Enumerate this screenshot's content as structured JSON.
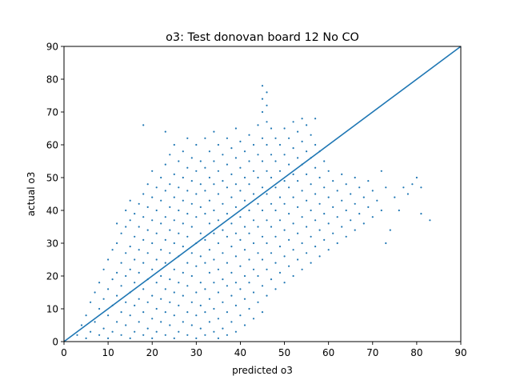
{
  "chart_data": {
    "type": "scatter",
    "title": "o3: Test donovan board 12 No CO",
    "xlabel": "predicted o3",
    "ylabel": "actual o3",
    "xlim": [
      0,
      90
    ],
    "ylim": [
      0,
      90
    ],
    "xticks": [
      0,
      10,
      20,
      30,
      40,
      50,
      60,
      70,
      80,
      90
    ],
    "yticks": [
      0,
      10,
      20,
      30,
      40,
      50,
      60,
      70,
      80,
      90
    ],
    "grid": false,
    "color": "#1f77b4",
    "reference_line": {
      "x": [
        0,
        90
      ],
      "y": [
        0,
        90
      ]
    },
    "points": [
      [
        3,
        2
      ],
      [
        4,
        5
      ],
      [
        5,
        1
      ],
      [
        5,
        8
      ],
      [
        6,
        3
      ],
      [
        6,
        12
      ],
      [
        7,
        6
      ],
      [
        7,
        15
      ],
      [
        8,
        2
      ],
      [
        8,
        10
      ],
      [
        8,
        18
      ],
      [
        9,
        4
      ],
      [
        9,
        13
      ],
      [
        9,
        22
      ],
      [
        10,
        1
      ],
      [
        10,
        8
      ],
      [
        10,
        16
      ],
      [
        10,
        25
      ],
      [
        11,
        3
      ],
      [
        11,
        11
      ],
      [
        11,
        19
      ],
      [
        11,
        28
      ],
      [
        12,
        6
      ],
      [
        12,
        14
      ],
      [
        12,
        21
      ],
      [
        12,
        30
      ],
      [
        12,
        36
      ],
      [
        13,
        2
      ],
      [
        13,
        9
      ],
      [
        13,
        17
      ],
      [
        13,
        24
      ],
      [
        13,
        33
      ],
      [
        14,
        5
      ],
      [
        14,
        12
      ],
      [
        14,
        20
      ],
      [
        14,
        27
      ],
      [
        14,
        35
      ],
      [
        14,
        40
      ],
      [
        15,
        1
      ],
      [
        15,
        8
      ],
      [
        15,
        15
      ],
      [
        15,
        22
      ],
      [
        15,
        29
      ],
      [
        15,
        37
      ],
      [
        15,
        43
      ],
      [
        16,
        3
      ],
      [
        16,
        11
      ],
      [
        16,
        18
      ],
      [
        16,
        25
      ],
      [
        16,
        32
      ],
      [
        16,
        39
      ],
      [
        17,
        6
      ],
      [
        17,
        13
      ],
      [
        17,
        21
      ],
      [
        17,
        28
      ],
      [
        17,
        35
      ],
      [
        17,
        42
      ],
      [
        18,
        2
      ],
      [
        18,
        9
      ],
      [
        18,
        16
      ],
      [
        18,
        24
      ],
      [
        18,
        31
      ],
      [
        18,
        38
      ],
      [
        18,
        45
      ],
      [
        18,
        66
      ],
      [
        19,
        4
      ],
      [
        19,
        12
      ],
      [
        19,
        19
      ],
      [
        19,
        27
      ],
      [
        19,
        34
      ],
      [
        19,
        41
      ],
      [
        19,
        48
      ],
      [
        20,
        1
      ],
      [
        20,
        7
      ],
      [
        20,
        14
      ],
      [
        20,
        22
      ],
      [
        20,
        30
      ],
      [
        20,
        37
      ],
      [
        20,
        44
      ],
      [
        20,
        52
      ],
      [
        21,
        3
      ],
      [
        21,
        10
      ],
      [
        21,
        18
      ],
      [
        21,
        25
      ],
      [
        21,
        33
      ],
      [
        21,
        40
      ],
      [
        21,
        47
      ],
      [
        22,
        6
      ],
      [
        22,
        13
      ],
      [
        22,
        20
      ],
      [
        22,
        28
      ],
      [
        22,
        36
      ],
      [
        22,
        43
      ],
      [
        22,
        50
      ],
      [
        23,
        2
      ],
      [
        23,
        9
      ],
      [
        23,
        16
      ],
      [
        23,
        24
      ],
      [
        23,
        31
      ],
      [
        23,
        38
      ],
      [
        23,
        46
      ],
      [
        23,
        54
      ],
      [
        23,
        64
      ],
      [
        24,
        5
      ],
      [
        24,
        12
      ],
      [
        24,
        19
      ],
      [
        24,
        27
      ],
      [
        24,
        34
      ],
      [
        24,
        41
      ],
      [
        24,
        48
      ],
      [
        24,
        57
      ],
      [
        25,
        1
      ],
      [
        25,
        8
      ],
      [
        25,
        15
      ],
      [
        25,
        22
      ],
      [
        25,
        30
      ],
      [
        25,
        37
      ],
      [
        25,
        44
      ],
      [
        25,
        51
      ],
      [
        25,
        60
      ],
      [
        26,
        3
      ],
      [
        26,
        11
      ],
      [
        26,
        18
      ],
      [
        26,
        26
      ],
      [
        26,
        33
      ],
      [
        26,
        40
      ],
      [
        26,
        47
      ],
      [
        26,
        55
      ],
      [
        27,
        6
      ],
      [
        27,
        14
      ],
      [
        27,
        21
      ],
      [
        27,
        29
      ],
      [
        27,
        36
      ],
      [
        27,
        43
      ],
      [
        27,
        50
      ],
      [
        27,
        58
      ],
      [
        28,
        2
      ],
      [
        28,
        9
      ],
      [
        28,
        17
      ],
      [
        28,
        24
      ],
      [
        28,
        32
      ],
      [
        28,
        39
      ],
      [
        28,
        46
      ],
      [
        28,
        53
      ],
      [
        28,
        62
      ],
      [
        29,
        5
      ],
      [
        29,
        12
      ],
      [
        29,
        20
      ],
      [
        29,
        27
      ],
      [
        29,
        35
      ],
      [
        29,
        42
      ],
      [
        29,
        49
      ],
      [
        29,
        56
      ],
      [
        30,
        1
      ],
      [
        30,
        8
      ],
      [
        30,
        15
      ],
      [
        30,
        23
      ],
      [
        30,
        30
      ],
      [
        30,
        38
      ],
      [
        30,
        45
      ],
      [
        30,
        52
      ],
      [
        30,
        60
      ],
      [
        31,
        4
      ],
      [
        31,
        11
      ],
      [
        31,
        18
      ],
      [
        31,
        26
      ],
      [
        31,
        33
      ],
      [
        31,
        41
      ],
      [
        31,
        48
      ],
      [
        31,
        55
      ],
      [
        32,
        2
      ],
      [
        32,
        9
      ],
      [
        32,
        16
      ],
      [
        32,
        24
      ],
      [
        32,
        31
      ],
      [
        32,
        39
      ],
      [
        32,
        46
      ],
      [
        32,
        53
      ],
      [
        32,
        62
      ],
      [
        33,
        6
      ],
      [
        33,
        13
      ],
      [
        33,
        21
      ],
      [
        33,
        28
      ],
      [
        33,
        36
      ],
      [
        33,
        43
      ],
      [
        33,
        50
      ],
      [
        33,
        58
      ],
      [
        34,
        3
      ],
      [
        34,
        10
      ],
      [
        34,
        18
      ],
      [
        34,
        25
      ],
      [
        34,
        33
      ],
      [
        34,
        40
      ],
      [
        34,
        48
      ],
      [
        34,
        55
      ],
      [
        34,
        64
      ],
      [
        35,
        1
      ],
      [
        35,
        7
      ],
      [
        35,
        15
      ],
      [
        35,
        22
      ],
      [
        35,
        30
      ],
      [
        35,
        37
      ],
      [
        35,
        45
      ],
      [
        35,
        52
      ],
      [
        35,
        60
      ],
      [
        36,
        4
      ],
      [
        36,
        12
      ],
      [
        36,
        19
      ],
      [
        36,
        27
      ],
      [
        36,
        34
      ],
      [
        36,
        42
      ],
      [
        36,
        49
      ],
      [
        36,
        57
      ],
      [
        37,
        2
      ],
      [
        37,
        9
      ],
      [
        37,
        17
      ],
      [
        37,
        24
      ],
      [
        37,
        32
      ],
      [
        37,
        39
      ],
      [
        37,
        47
      ],
      [
        37,
        54
      ],
      [
        37,
        62
      ],
      [
        38,
        6
      ],
      [
        38,
        14
      ],
      [
        38,
        21
      ],
      [
        38,
        29
      ],
      [
        38,
        36
      ],
      [
        38,
        44
      ],
      [
        38,
        51
      ],
      [
        38,
        59
      ],
      [
        39,
        3
      ],
      [
        39,
        11
      ],
      [
        39,
        18
      ],
      [
        39,
        26
      ],
      [
        39,
        33
      ],
      [
        39,
        41
      ],
      [
        39,
        48
      ],
      [
        39,
        56
      ],
      [
        39,
        65
      ],
      [
        40,
        8
      ],
      [
        40,
        16
      ],
      [
        40,
        23
      ],
      [
        40,
        31
      ],
      [
        40,
        38
      ],
      [
        40,
        46
      ],
      [
        40,
        53
      ],
      [
        40,
        61
      ],
      [
        41,
        5
      ],
      [
        41,
        13
      ],
      [
        41,
        20
      ],
      [
        41,
        28
      ],
      [
        41,
        35
      ],
      [
        41,
        43
      ],
      [
        41,
        50
      ],
      [
        41,
        58
      ],
      [
        42,
        10
      ],
      [
        42,
        18
      ],
      [
        42,
        25
      ],
      [
        42,
        33
      ],
      [
        42,
        40
      ],
      [
        42,
        48
      ],
      [
        42,
        55
      ],
      [
        42,
        63
      ],
      [
        43,
        7
      ],
      [
        43,
        15
      ],
      [
        43,
        22
      ],
      [
        43,
        30
      ],
      [
        43,
        37
      ],
      [
        43,
        45
      ],
      [
        43,
        52
      ],
      [
        43,
        60
      ],
      [
        44,
        12
      ],
      [
        44,
        20
      ],
      [
        44,
        27
      ],
      [
        44,
        35
      ],
      [
        44,
        42
      ],
      [
        44,
        50
      ],
      [
        44,
        57
      ],
      [
        44,
        66
      ],
      [
        45,
        9
      ],
      [
        45,
        17
      ],
      [
        45,
        25
      ],
      [
        45,
        32
      ],
      [
        45,
        40
      ],
      [
        45,
        47
      ],
      [
        45,
        55
      ],
      [
        45,
        62
      ],
      [
        45,
        70
      ],
      [
        45,
        74
      ],
      [
        45,
        78
      ],
      [
        46,
        14
      ],
      [
        46,
        22
      ],
      [
        46,
        30
      ],
      [
        46,
        37
      ],
      [
        46,
        45
      ],
      [
        46,
        52
      ],
      [
        46,
        60
      ],
      [
        46,
        67
      ],
      [
        46,
        72
      ],
      [
        46,
        76
      ],
      [
        47,
        19
      ],
      [
        47,
        27
      ],
      [
        47,
        35
      ],
      [
        47,
        42
      ],
      [
        47,
        50
      ],
      [
        47,
        57
      ],
      [
        47,
        65
      ],
      [
        48,
        16
      ],
      [
        48,
        24
      ],
      [
        48,
        32
      ],
      [
        48,
        40
      ],
      [
        48,
        47
      ],
      [
        48,
        55
      ],
      [
        48,
        62
      ],
      [
        49,
        21
      ],
      [
        49,
        29
      ],
      [
        49,
        37
      ],
      [
        49,
        44
      ],
      [
        49,
        52
      ],
      [
        49,
        60
      ],
      [
        50,
        18
      ],
      [
        50,
        26
      ],
      [
        50,
        34
      ],
      [
        50,
        42
      ],
      [
        50,
        49
      ],
      [
        50,
        57
      ],
      [
        50,
        65
      ],
      [
        51,
        23
      ],
      [
        51,
        31
      ],
      [
        51,
        39
      ],
      [
        51,
        47
      ],
      [
        51,
        54
      ],
      [
        51,
        62
      ],
      [
        52,
        20
      ],
      [
        52,
        28
      ],
      [
        52,
        36
      ],
      [
        52,
        44
      ],
      [
        52,
        51
      ],
      [
        52,
        59
      ],
      [
        52,
        67
      ],
      [
        53,
        25
      ],
      [
        53,
        33
      ],
      [
        53,
        41
      ],
      [
        53,
        49
      ],
      [
        53,
        56
      ],
      [
        53,
        64
      ],
      [
        54,
        22
      ],
      [
        54,
        30
      ],
      [
        54,
        38
      ],
      [
        54,
        46
      ],
      [
        54,
        54
      ],
      [
        54,
        61
      ],
      [
        54,
        68
      ],
      [
        55,
        27
      ],
      [
        55,
        35
      ],
      [
        55,
        43
      ],
      [
        55,
        51
      ],
      [
        55,
        58
      ],
      [
        55,
        66
      ],
      [
        56,
        24
      ],
      [
        56,
        32
      ],
      [
        56,
        40
      ],
      [
        56,
        48
      ],
      [
        56,
        56
      ],
      [
        56,
        63
      ],
      [
        57,
        29
      ],
      [
        57,
        37
      ],
      [
        57,
        45
      ],
      [
        57,
        53
      ],
      [
        57,
        60
      ],
      [
        57,
        68
      ],
      [
        58,
        26
      ],
      [
        58,
        34
      ],
      [
        58,
        42
      ],
      [
        58,
        50
      ],
      [
        58,
        58
      ],
      [
        59,
        31
      ],
      [
        59,
        39
      ],
      [
        59,
        47
      ],
      [
        59,
        55
      ],
      [
        60,
        28
      ],
      [
        60,
        36
      ],
      [
        60,
        44
      ],
      [
        60,
        52
      ],
      [
        61,
        33
      ],
      [
        61,
        41
      ],
      [
        61,
        49
      ],
      [
        62,
        30
      ],
      [
        62,
        38
      ],
      [
        62,
        46
      ],
      [
        63,
        35
      ],
      [
        63,
        43
      ],
      [
        63,
        51
      ],
      [
        64,
        32
      ],
      [
        64,
        40
      ],
      [
        64,
        48
      ],
      [
        65,
        37
      ],
      [
        65,
        45
      ],
      [
        66,
        34
      ],
      [
        66,
        42
      ],
      [
        66,
        50
      ],
      [
        67,
        39
      ],
      [
        67,
        47
      ],
      [
        68,
        36
      ],
      [
        68,
        44
      ],
      [
        69,
        41
      ],
      [
        69,
        49
      ],
      [
        70,
        38
      ],
      [
        70,
        46
      ],
      [
        71,
        43
      ],
      [
        72,
        40
      ],
      [
        72,
        52
      ],
      [
        73,
        30
      ],
      [
        73,
        47
      ],
      [
        74,
        34
      ],
      [
        75,
        44
      ],
      [
        76,
        40
      ],
      [
        77,
        47
      ],
      [
        78,
        45
      ],
      [
        79,
        48
      ],
      [
        80,
        50
      ],
      [
        81,
        47
      ],
      [
        81,
        39
      ],
      [
        83,
        37
      ]
    ]
  }
}
